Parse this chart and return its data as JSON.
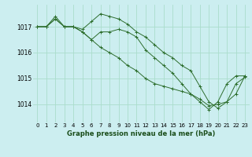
{
  "title": "Graphe pression niveau de la mer (hPa)",
  "bg_color": "#cceef0",
  "grid_color": "#aaddcc",
  "line_color": "#2d6e2d",
  "marker_color": "#2d6e2d",
  "x_ticks": [
    0,
    1,
    2,
    3,
    4,
    5,
    6,
    7,
    8,
    9,
    10,
    11,
    12,
    13,
    14,
    15,
    16,
    17,
    18,
    19,
    20,
    21,
    22,
    23
  ],
  "y_ticks": [
    1014,
    1015,
    1016,
    1017
  ],
  "ylim": [
    1013.3,
    1017.85
  ],
  "xlim": [
    -0.5,
    23.5
  ],
  "series": [
    [
      1017.0,
      1017.0,
      1017.3,
      1017.0,
      1017.0,
      1016.9,
      1017.2,
      1017.5,
      1017.4,
      1017.3,
      1017.1,
      1016.8,
      1016.6,
      1016.3,
      1016.0,
      1015.8,
      1015.5,
      1015.3,
      1014.7,
      1014.1,
      1013.85,
      1014.1,
      1014.8,
      1015.05
    ],
    [
      1017.0,
      1017.0,
      1017.4,
      1017.0,
      1017.0,
      1016.8,
      1016.5,
      1016.8,
      1016.8,
      1016.9,
      1016.8,
      1016.6,
      1016.1,
      1015.8,
      1015.5,
      1015.2,
      1014.8,
      1014.4,
      1014.1,
      1013.8,
      1014.1,
      1014.8,
      1015.1,
      1015.1
    ],
    [
      1017.0,
      1017.0,
      1017.3,
      1017.0,
      1017.0,
      1016.8,
      1016.5,
      1016.2,
      1016.0,
      1015.8,
      1015.5,
      1015.3,
      1015.0,
      1014.8,
      1014.7,
      1014.6,
      1014.5,
      1014.4,
      1014.2,
      1013.95,
      1014.0,
      1014.1,
      1014.4,
      1015.1
    ]
  ]
}
